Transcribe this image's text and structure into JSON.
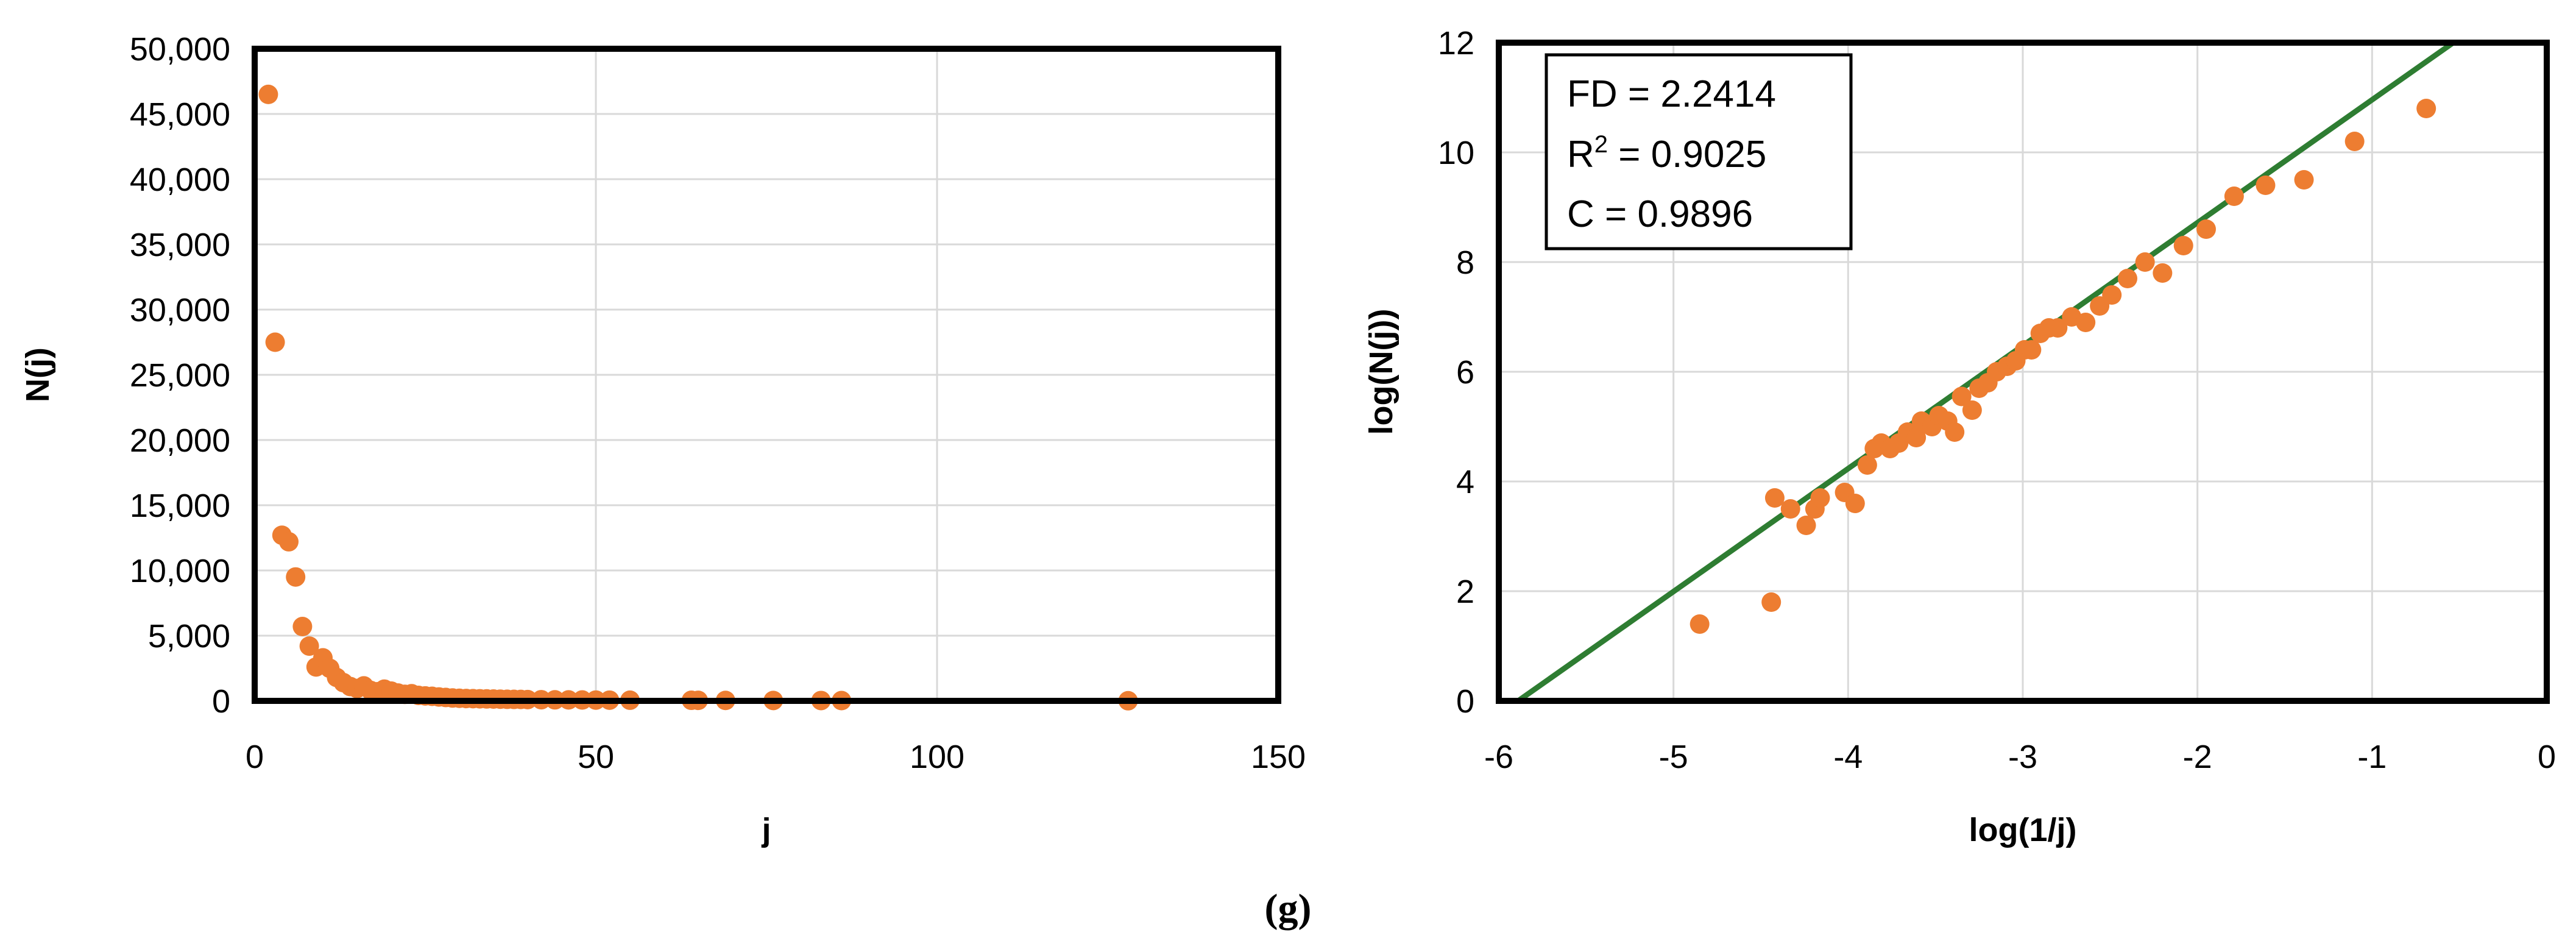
{
  "colors": {
    "marker": "#ED7D31",
    "fit_line": "#2E7D32",
    "grid": "#D9D9D9",
    "frame": "#000000"
  },
  "caption": "(g)",
  "chart_data": [
    {
      "type": "scatter",
      "xlabel": "j",
      "ylabel": "N(j)",
      "xlim": [
        0,
        150
      ],
      "ylim": [
        0,
        50000
      ],
      "x_ticks": [
        0,
        50,
        100,
        150
      ],
      "y_ticks": [
        0,
        5000,
        10000,
        15000,
        20000,
        25000,
        30000,
        35000,
        40000,
        45000,
        50000
      ],
      "x_tick_labels": [
        "0",
        "50",
        "100",
        "150"
      ],
      "y_tick_labels": [
        "0",
        "5,000",
        "10,000",
        "15,000",
        "20,000",
        "25,000",
        "30,000",
        "35,000",
        "40,000",
        "45,000",
        "50,000"
      ],
      "grid": true,
      "series": [
        {
          "points": [
            [
              2,
              46500
            ],
            [
              3,
              27500
            ],
            [
              4,
              12700
            ],
            [
              5,
              12200
            ],
            [
              6,
              9500
            ],
            [
              7,
              5700
            ],
            [
              8,
              4200
            ],
            [
              9,
              2600
            ],
            [
              10,
              3300
            ],
            [
              11,
              2500
            ],
            [
              12,
              1800
            ],
            [
              13,
              1400
            ],
            [
              14,
              1100
            ],
            [
              15,
              950
            ],
            [
              16,
              1150
            ],
            [
              17,
              800
            ],
            [
              18,
              700
            ],
            [
              19,
              900
            ],
            [
              20,
              750
            ],
            [
              21,
              600
            ],
            [
              22,
              500
            ],
            [
              23,
              550
            ],
            [
              24,
              420
            ],
            [
              25,
              380
            ],
            [
              26,
              350
            ],
            [
              27,
              300
            ],
            [
              28,
              260
            ],
            [
              29,
              220
            ],
            [
              30,
              200
            ],
            [
              31,
              180
            ],
            [
              32,
              170
            ],
            [
              33,
              160
            ],
            [
              34,
              150
            ],
            [
              35,
              140
            ],
            [
              36,
              130
            ],
            [
              37,
              120
            ],
            [
              38,
              115
            ],
            [
              39,
              110
            ],
            [
              40,
              100
            ],
            [
              42,
              90
            ],
            [
              44,
              80
            ],
            [
              46,
              75
            ],
            [
              48,
              70
            ],
            [
              50,
              60
            ],
            [
              52,
              55
            ],
            [
              55,
              50
            ],
            [
              64,
              45
            ],
            [
              65,
              40
            ],
            [
              69,
              35
            ],
            [
              76,
              30
            ],
            [
              83,
              25
            ],
            [
              86,
              22
            ],
            [
              128,
              10
            ]
          ]
        }
      ]
    },
    {
      "type": "scatter",
      "xlabel": "log(1/j)",
      "ylabel": "log(N(j))",
      "xlim": [
        -6,
        0
      ],
      "ylim": [
        0,
        12
      ],
      "x_ticks": [
        -6,
        -5,
        -4,
        -3,
        -2,
        -1,
        0
      ],
      "y_ticks": [
        0,
        2,
        4,
        6,
        8,
        10,
        12
      ],
      "x_tick_labels": [
        "-6",
        "-5",
        "-4",
        "-3",
        "-2",
        "-1",
        "0"
      ],
      "y_tick_labels": [
        "0",
        "2",
        "4",
        "6",
        "8",
        "10",
        "12"
      ],
      "grid": true,
      "series": [
        {
          "points": [
            [
              -4.85,
              1.4
            ],
            [
              -4.44,
              1.8
            ],
            [
              -4.42,
              3.7
            ],
            [
              -4.33,
              3.5
            ],
            [
              -4.24,
              3.2
            ],
            [
              -4.19,
              3.5
            ],
            [
              -4.16,
              3.7
            ],
            [
              -4.02,
              3.8
            ],
            [
              -3.96,
              3.6
            ],
            [
              -3.89,
              4.3
            ],
            [
              -3.85,
              4.6
            ],
            [
              -3.81,
              4.7
            ],
            [
              -3.76,
              4.6
            ],
            [
              -3.71,
              4.7
            ],
            [
              -3.66,
              4.9
            ],
            [
              -3.61,
              4.8
            ],
            [
              -3.58,
              5.1
            ],
            [
              -3.52,
              5.0
            ],
            [
              -3.48,
              5.2
            ],
            [
              -3.43,
              5.1
            ],
            [
              -3.39,
              4.9
            ],
            [
              -3.35,
              5.55
            ],
            [
              -3.29,
              5.3
            ],
            [
              -3.25,
              5.7
            ],
            [
              -3.2,
              5.8
            ],
            [
              -3.15,
              6.0
            ],
            [
              -3.09,
              6.1
            ],
            [
              -3.04,
              6.2
            ],
            [
              -2.99,
              6.4
            ],
            [
              -2.95,
              6.4
            ],
            [
              -2.9,
              6.7
            ],
            [
              -2.85,
              6.8
            ],
            [
              -2.8,
              6.8
            ],
            [
              -2.72,
              7.0
            ],
            [
              -2.64,
              6.9
            ],
            [
              -2.56,
              7.2
            ],
            [
              -2.49,
              7.4
            ],
            [
              -2.4,
              7.7
            ],
            [
              -2.3,
              8.0
            ],
            [
              -2.2,
              7.8
            ],
            [
              -2.08,
              8.3
            ],
            [
              -1.95,
              8.6
            ],
            [
              -1.79,
              9.2
            ],
            [
              -1.61,
              9.4
            ],
            [
              -1.39,
              9.5
            ],
            [
              -1.1,
              10.2
            ],
            [
              -0.69,
              10.8
            ]
          ]
        }
      ],
      "fit_line": {
        "slope": 2.2414,
        "intercept": 13.2
      },
      "annotations": [
        {
          "label": "FD",
          "value": "2.2414"
        },
        {
          "label": "R",
          "superscript": "2",
          "value": "0.9025"
        },
        {
          "label": "C",
          "value": "0.9896"
        }
      ]
    }
  ]
}
